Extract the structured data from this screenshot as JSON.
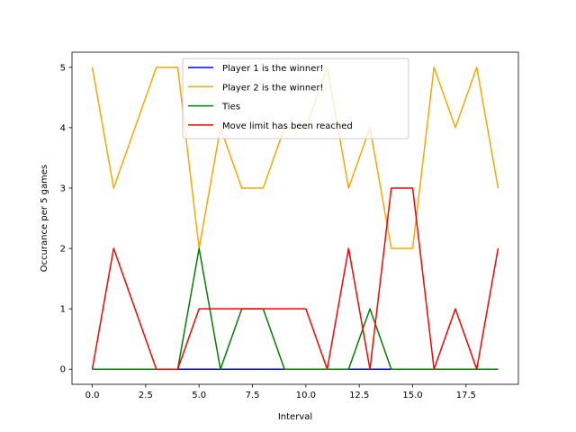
{
  "chart_data": {
    "type": "line",
    "title": "",
    "xlabel": "Interval",
    "ylabel": "Occurance per 5 games",
    "xlim": [
      -0.95,
      19.95
    ],
    "ylim": [
      -0.25,
      5.25
    ],
    "xticks": [
      0.0,
      2.5,
      5.0,
      7.5,
      10.0,
      12.5,
      15.0,
      17.5
    ],
    "xtick_labels": [
      "0.0",
      "2.5",
      "5.0",
      "7.5",
      "10.0",
      "12.5",
      "15.0",
      "17.5"
    ],
    "yticks": [
      0,
      1,
      2,
      3,
      4,
      5
    ],
    "ytick_labels": [
      "0",
      "1",
      "2",
      "3",
      "4",
      "5"
    ],
    "grid": false,
    "legend_position": "top-center",
    "x": [
      0,
      1,
      2,
      3,
      4,
      5,
      6,
      7,
      8,
      9,
      10,
      11,
      12,
      13,
      14,
      15,
      16,
      17,
      18,
      19
    ],
    "series": [
      {
        "name": "Player 1 is the winner!",
        "color": "#0000ff",
        "values": [
          0,
          0,
          0,
          0,
          0,
          0,
          0,
          0,
          0,
          0,
          0,
          0,
          0,
          0,
          0,
          0,
          0,
          0,
          0,
          0
        ]
      },
      {
        "name": "Player 2 is the winner!",
        "color": "#ffa500",
        "values": [
          5,
          3,
          4,
          5,
          5,
          2,
          4,
          3,
          3,
          4,
          4,
          5,
          3,
          4,
          2,
          2,
          5,
          4,
          5,
          3
        ]
      },
      {
        "name": "Ties",
        "color": "#008000",
        "values": [
          0,
          0,
          0,
          0,
          0,
          2,
          0,
          1,
          1,
          0,
          0,
          0,
          0,
          1,
          0,
          0,
          0,
          0,
          0,
          0
        ]
      },
      {
        "name": "Move limit has been reached",
        "color": "#ff0000",
        "values": [
          0,
          2,
          1,
          0,
          0,
          1,
          1,
          1,
          1,
          1,
          1,
          0,
          2,
          0,
          3,
          3,
          0,
          1,
          0,
          2
        ]
      }
    ]
  }
}
